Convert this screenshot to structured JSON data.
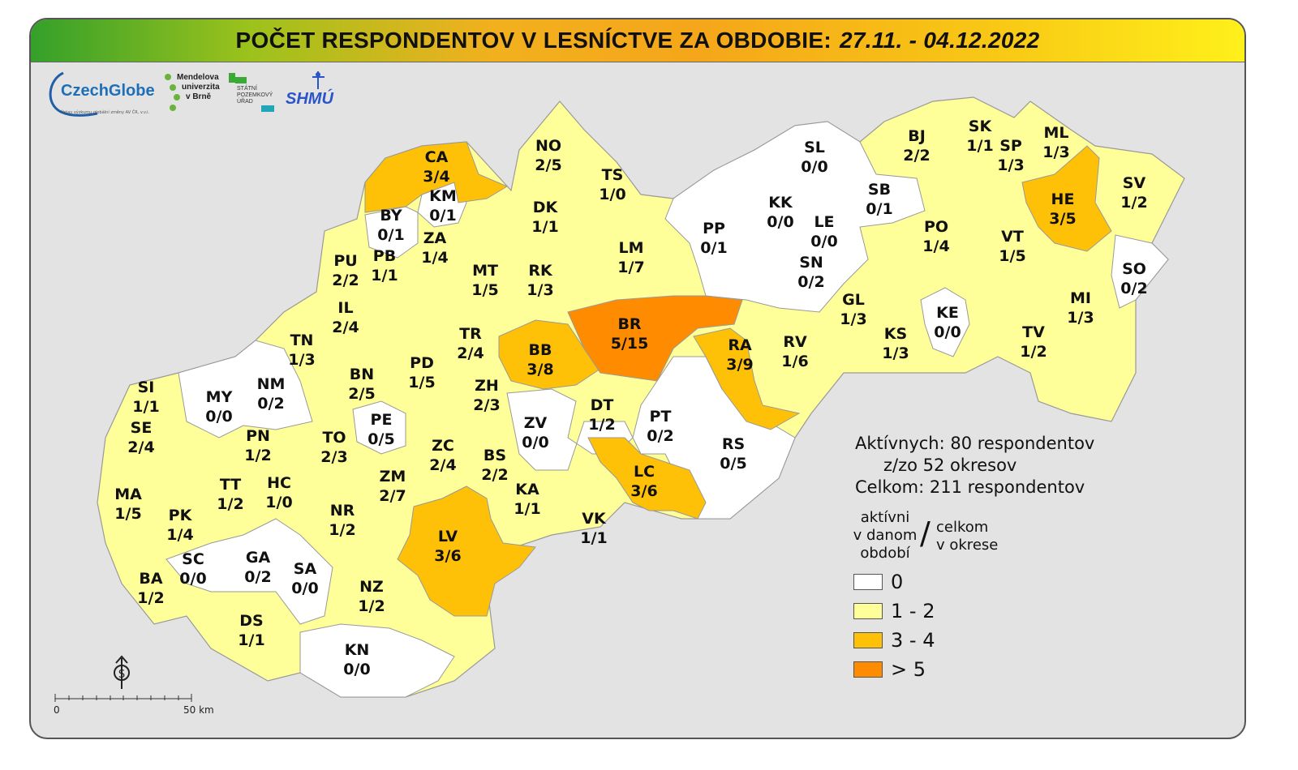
{
  "title": {
    "main": "POČET RESPONDENTOV V LESNÍCTVE ZA OBDOBIE:",
    "dates": "27.11. - 04.12.2022"
  },
  "logos": {
    "czechglobe": "CzechGlobe",
    "czechglobe_sub": "Ústav výzkumu globální změny AV ČR, v.v.i.",
    "mendel_l1": "Mendelova",
    "mendel_l2": "univerzita",
    "mendel_l3": "v Brně",
    "spu_l1": "STÁTNÍ",
    "spu_l2": "POZEMKOVÝ",
    "spu_l3": "ÚŘAD",
    "shmu": "SHMÚ"
  },
  "stats": {
    "active": "Aktívnych: 80 respondentov",
    "districts": "z/zo 52 okresov",
    "total": "Celkom: 211 respondentov"
  },
  "legend": {
    "left_l1": "aktívni",
    "left_l2": "v danom",
    "left_l3": "období",
    "slash": "/",
    "right_l1": "celkom",
    "right_l2": "v okrese",
    "items": [
      {
        "label": "0",
        "color": "#ffffff"
      },
      {
        "label": "1 - 2",
        "color": "#ffff99"
      },
      {
        "label": "3 - 4",
        "color": "#ffc107"
      },
      {
        "label": "> 5",
        "color": "#ff8c00"
      }
    ]
  },
  "scale": {
    "zero": "0",
    "end": "50 km"
  },
  "districts": [
    {
      "code": "CA",
      "value": "3/4",
      "cat": 2
    },
    {
      "code": "KM",
      "value": "0/1",
      "cat": 0
    },
    {
      "code": "NO",
      "value": "2/5",
      "cat": 1
    },
    {
      "code": "TS",
      "value": "1/0",
      "cat": 1
    },
    {
      "code": "DK",
      "value": "1/1",
      "cat": 1
    },
    {
      "code": "BY",
      "value": "0/1",
      "cat": 0
    },
    {
      "code": "ZA",
      "value": "1/4",
      "cat": 1
    },
    {
      "code": "PU",
      "value": "2/2",
      "cat": 1
    },
    {
      "code": "PB",
      "value": "1/1",
      "cat": 1
    },
    {
      "code": "MT",
      "value": "1/5",
      "cat": 1
    },
    {
      "code": "RK",
      "value": "1/3",
      "cat": 1
    },
    {
      "code": "LM",
      "value": "1/7",
      "cat": 1
    },
    {
      "code": "PP",
      "value": "0/1",
      "cat": 0
    },
    {
      "code": "SL",
      "value": "0/0",
      "cat": 0
    },
    {
      "code": "KK",
      "value": "0/0",
      "cat": 0
    },
    {
      "code": "LE",
      "value": "0/0",
      "cat": 0
    },
    {
      "code": "SB",
      "value": "0/1",
      "cat": 0
    },
    {
      "code": "SN",
      "value": "0/2",
      "cat": 0
    },
    {
      "code": "BJ",
      "value": "2/2",
      "cat": 1
    },
    {
      "code": "SK",
      "value": "1/1",
      "cat": 1
    },
    {
      "code": "SP",
      "value": "1/3",
      "cat": 1
    },
    {
      "code": "ML",
      "value": "1/3",
      "cat": 1
    },
    {
      "code": "HE",
      "value": "3/5",
      "cat": 2
    },
    {
      "code": "SV",
      "value": "1/2",
      "cat": 1
    },
    {
      "code": "PO",
      "value": "1/4",
      "cat": 1
    },
    {
      "code": "VT",
      "value": "1/5",
      "cat": 1
    },
    {
      "code": "SO",
      "value": "0/2",
      "cat": 0
    },
    {
      "code": "MI",
      "value": "1/3",
      "cat": 1
    },
    {
      "code": "KE",
      "value": "0/0",
      "cat": 0
    },
    {
      "code": "KS",
      "value": "1/3",
      "cat": 1
    },
    {
      "code": "TV",
      "value": "1/2",
      "cat": 1
    },
    {
      "code": "GL",
      "value": "1/3",
      "cat": 1
    },
    {
      "code": "RV",
      "value": "1/6",
      "cat": 1
    },
    {
      "code": "IL",
      "value": "2/4",
      "cat": 1
    },
    {
      "code": "TN",
      "value": "1/3",
      "cat": 1
    },
    {
      "code": "TR",
      "value": "2/4",
      "cat": 1
    },
    {
      "code": "BB",
      "value": "3/8",
      "cat": 2
    },
    {
      "code": "BR",
      "value": "5/15",
      "cat": 3
    },
    {
      "code": "RA",
      "value": "3/9",
      "cat": 2
    },
    {
      "code": "NM",
      "value": "0/2",
      "cat": 0
    },
    {
      "code": "BN",
      "value": "2/5",
      "cat": 1
    },
    {
      "code": "PD",
      "value": "1/5",
      "cat": 1
    },
    {
      "code": "ZH",
      "value": "2/3",
      "cat": 1
    },
    {
      "code": "SI",
      "value": "1/1",
      "cat": 1
    },
    {
      "code": "MY",
      "value": "0/0",
      "cat": 0
    },
    {
      "code": "SE",
      "value": "2/4",
      "cat": 1
    },
    {
      "code": "PE",
      "value": "0/5",
      "cat": 0
    },
    {
      "code": "ZV",
      "value": "0/0",
      "cat": 0
    },
    {
      "code": "DT",
      "value": "1/2",
      "cat": 1
    },
    {
      "code": "PT",
      "value": "0/2",
      "cat": 0
    },
    {
      "code": "RS",
      "value": "0/5",
      "cat": 0
    },
    {
      "code": "PN",
      "value": "1/2",
      "cat": 1
    },
    {
      "code": "TO",
      "value": "2/3",
      "cat": 1
    },
    {
      "code": "ZC",
      "value": "2/4",
      "cat": 1
    },
    {
      "code": "BS",
      "value": "2/2",
      "cat": 1
    },
    {
      "code": "LC",
      "value": "3/6",
      "cat": 2
    },
    {
      "code": "MA",
      "value": "1/5",
      "cat": 1
    },
    {
      "code": "TT",
      "value": "1/2",
      "cat": 1
    },
    {
      "code": "HC",
      "value": "1/0",
      "cat": 1
    },
    {
      "code": "ZM",
      "value": "2/7",
      "cat": 1
    },
    {
      "code": "KA",
      "value": "1/1",
      "cat": 1
    },
    {
      "code": "PK",
      "value": "1/4",
      "cat": 1
    },
    {
      "code": "NR",
      "value": "1/2",
      "cat": 1
    },
    {
      "code": "VK",
      "value": "1/1",
      "cat": 1
    },
    {
      "code": "LV",
      "value": "3/6",
      "cat": 2
    },
    {
      "code": "SC",
      "value": "0/0",
      "cat": 0
    },
    {
      "code": "GA",
      "value": "0/2",
      "cat": 0
    },
    {
      "code": "SA",
      "value": "0/0",
      "cat": 0
    },
    {
      "code": "BA",
      "value": "1/2",
      "cat": 1
    },
    {
      "code": "NZ",
      "value": "1/2",
      "cat": 1
    },
    {
      "code": "DS",
      "value": "1/1",
      "cat": 1
    },
    {
      "code": "KN",
      "value": "0/0",
      "cat": 0
    }
  ]
}
